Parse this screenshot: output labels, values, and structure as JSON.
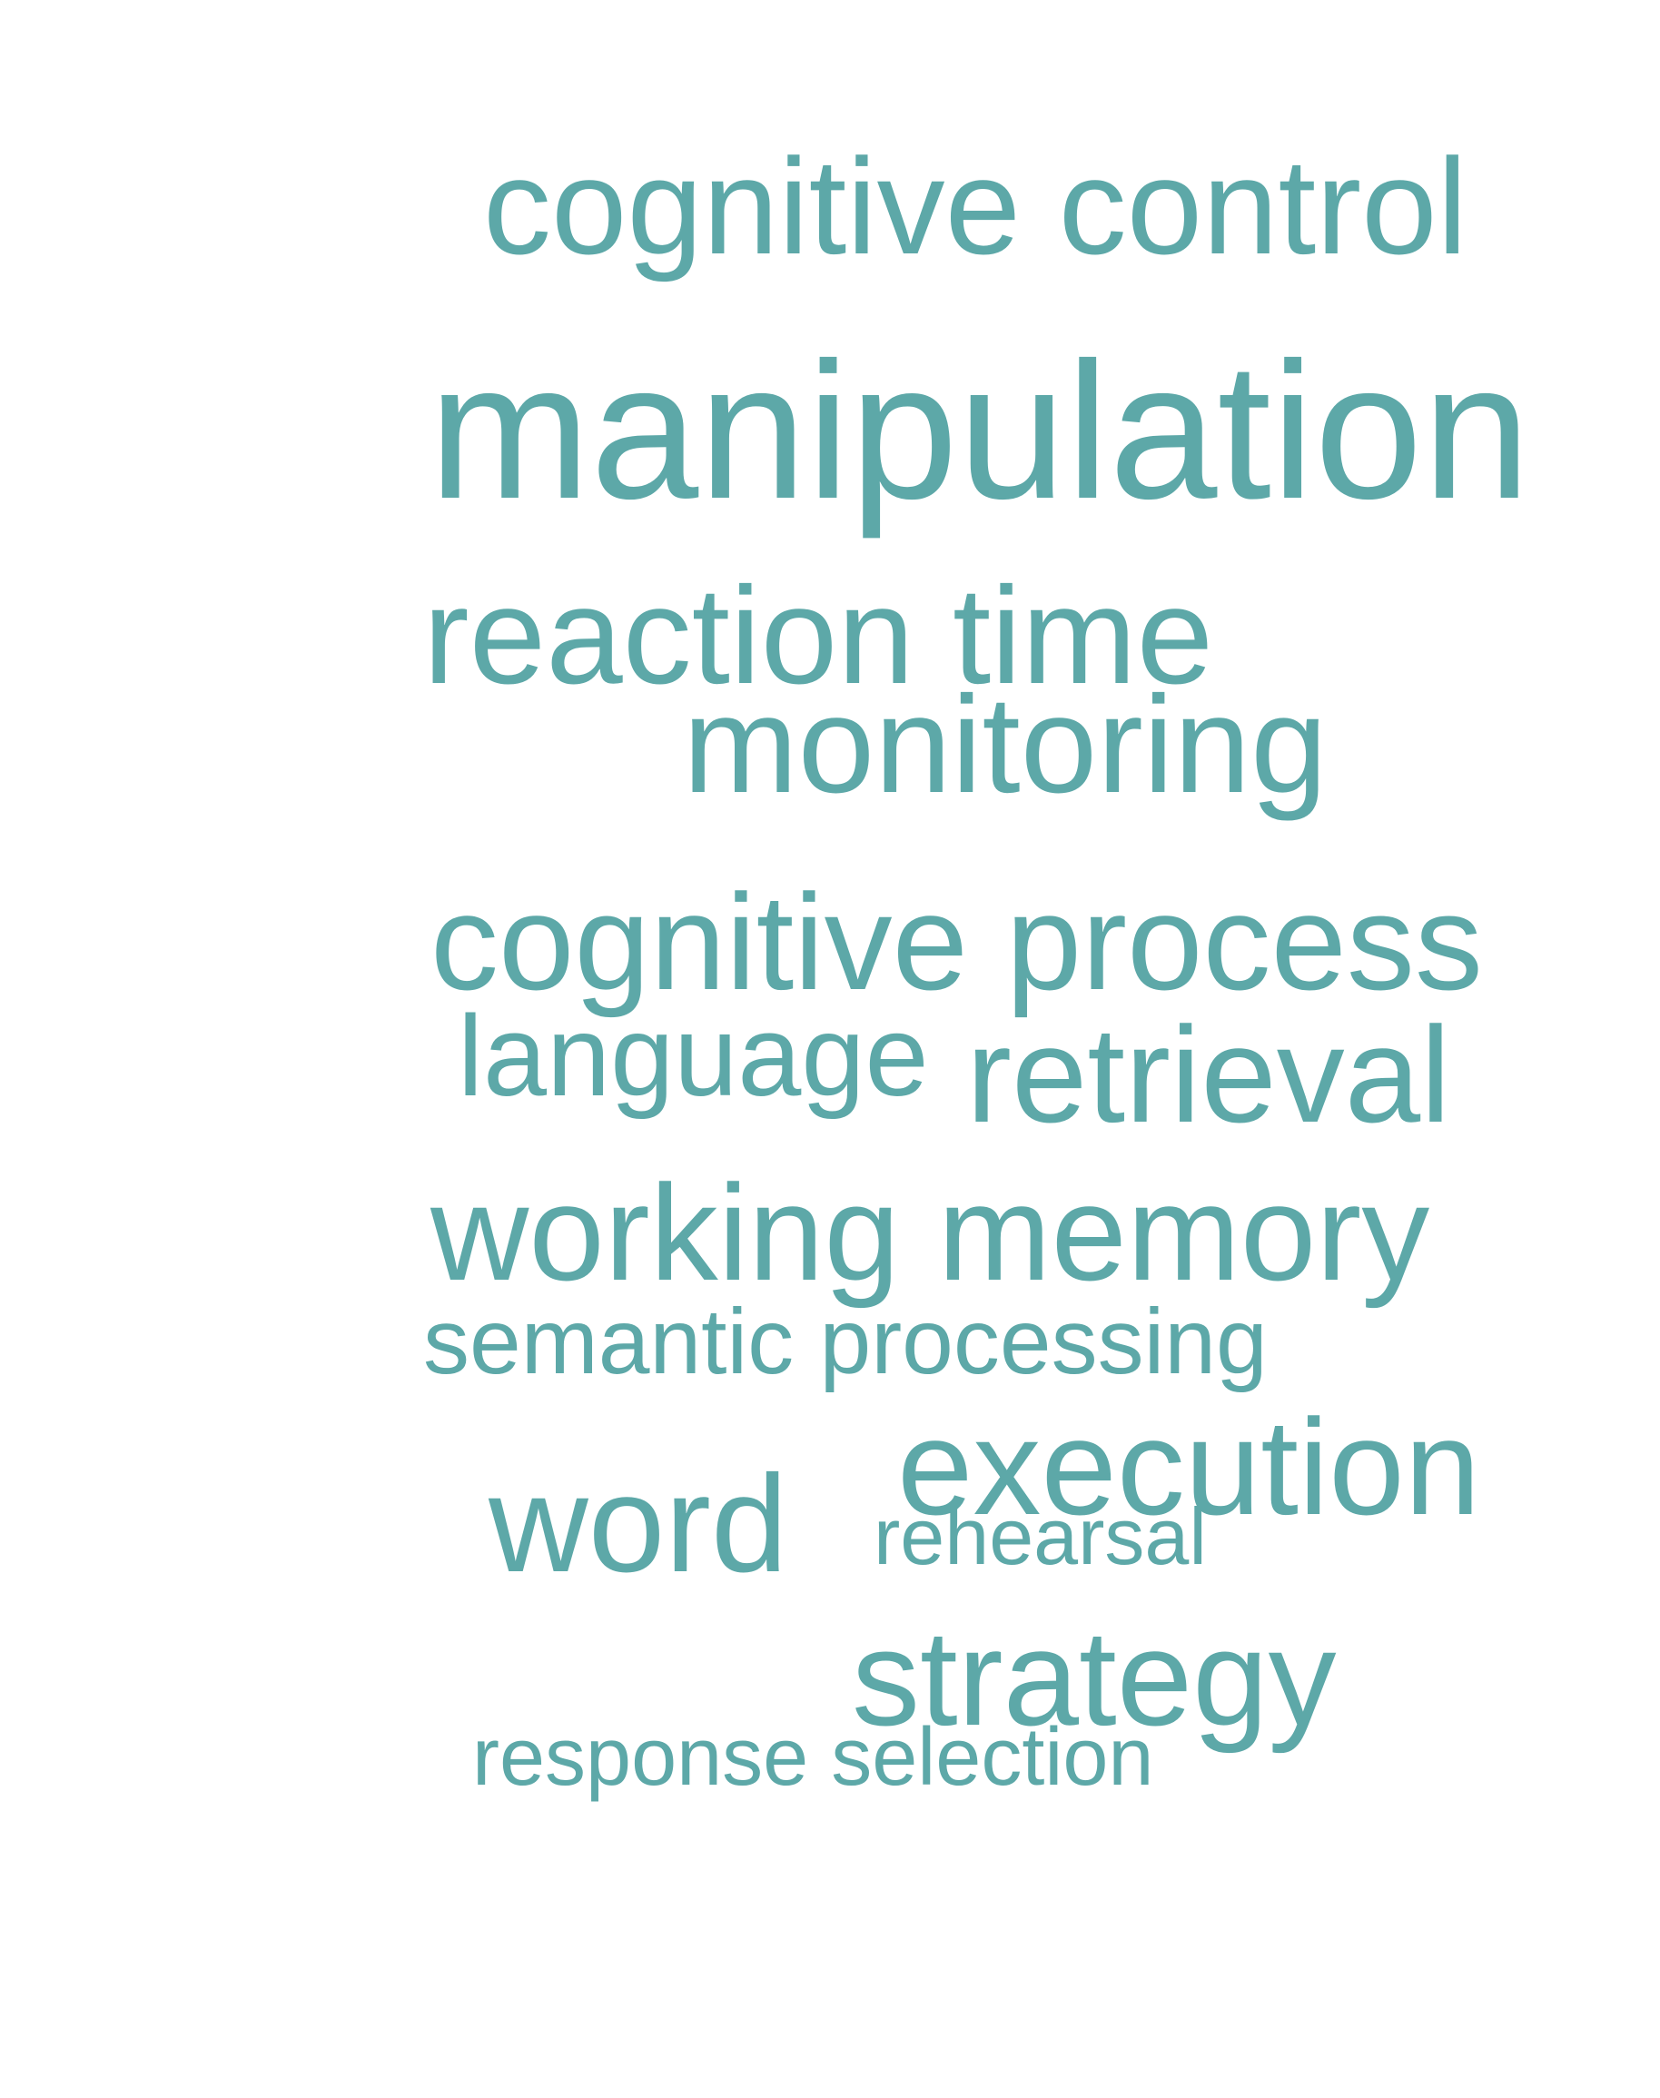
{
  "word_cloud": {
    "text_color": "#5da8a8",
    "background": "#ffffff",
    "words": {
      "cognitive_control": "cognitive control",
      "manipulation": "manipulation",
      "reaction_time": "reaction time",
      "monitoring": "monitoring",
      "cognitive_process": "cognitive process",
      "language": "language",
      "retrieval": "retrieval",
      "working_memory": "working memory",
      "semantic_processing": "semantic processing",
      "execution": "execution",
      "word": "word",
      "rehearsal": "rehearsal",
      "strategy": "strategy",
      "response_selection": "response selection"
    }
  }
}
